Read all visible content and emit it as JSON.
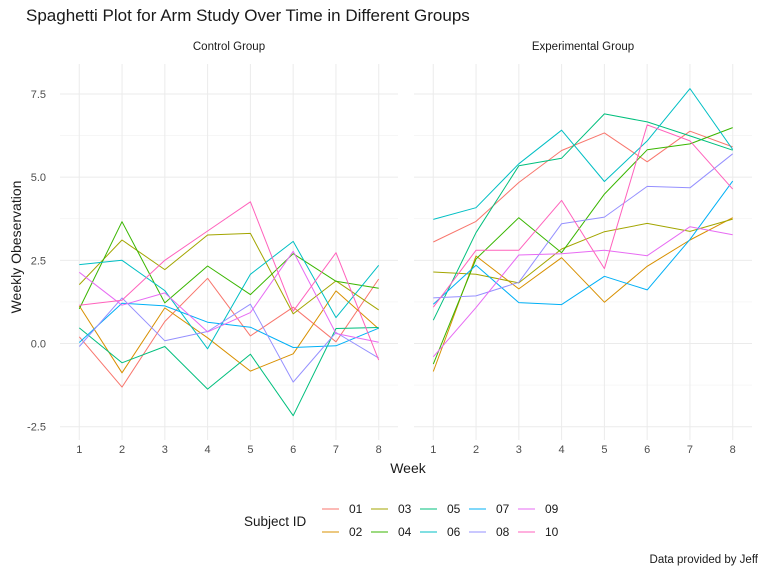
{
  "title": "Spaghetti Plot for Arm Study Over Time in Different Groups",
  "caption": "Data provided by Jeff",
  "chart_data": {
    "type": "line",
    "xlabel": "Week",
    "ylabel": "Weekly Obeservation",
    "x": [
      1,
      2,
      3,
      4,
      5,
      6,
      7,
      8
    ],
    "xlim": [
      0.55,
      8.45
    ],
    "ylim": [
      -2.9,
      8.4
    ],
    "yticks": [
      -2.5,
      0.0,
      2.5,
      5.0,
      7.5
    ],
    "ytick_labels": [
      "-2.5",
      "0.0",
      "2.5",
      "5.0",
      "7.5"
    ],
    "xticks": [
      1,
      2,
      3,
      4,
      5,
      6,
      7,
      8
    ],
    "xtick_labels": [
      "1",
      "2",
      "3",
      "4",
      "5",
      "6",
      "7",
      "8"
    ],
    "grid": true,
    "legend": {
      "title": "Subject ID",
      "position": "bottom",
      "entries": [
        "01",
        "02",
        "03",
        "04",
        "05",
        "06",
        "07",
        "08",
        "09",
        "10"
      ],
      "colors": [
        "#F8766D",
        "#D89000",
        "#A3A500",
        "#39B600",
        "#00BF7D",
        "#00BFC4",
        "#00B0F6",
        "#9590FF",
        "#E76BF3",
        "#FF62BC"
      ]
    },
    "panels": [
      {
        "label": "Control Group",
        "series": [
          {
            "name": "01",
            "values": [
              0.2,
              -1.31,
              0.66,
              1.96,
              0.23,
              1.09,
              0.05,
              1.94
            ]
          },
          {
            "name": "02",
            "values": [
              1.13,
              -0.88,
              1.07,
              0.17,
              -0.83,
              -0.31,
              1.58,
              0.44
            ]
          },
          {
            "name": "03",
            "values": [
              1.77,
              3.11,
              2.22,
              3.26,
              3.31,
              0.89,
              1.88,
              1.01
            ]
          },
          {
            "name": "04",
            "values": [
              1.04,
              3.66,
              1.22,
              2.33,
              1.47,
              2.7,
              1.87,
              1.66
            ]
          },
          {
            "name": "05",
            "values": [
              0.47,
              -0.58,
              -0.09,
              -1.37,
              -0.32,
              -2.17,
              0.45,
              0.48
            ]
          },
          {
            "name": "06",
            "values": [
              2.37,
              2.5,
              1.59,
              -0.16,
              2.08,
              3.07,
              0.78,
              2.35
            ]
          },
          {
            "name": "07",
            "values": [
              0.03,
              1.21,
              1.13,
              0.64,
              0.49,
              -0.12,
              -0.07,
              0.46
            ]
          },
          {
            "name": "08",
            "values": [
              -0.09,
              1.37,
              0.08,
              0.36,
              1.18,
              -1.16,
              0.33,
              -0.44
            ]
          },
          {
            "name": "09",
            "values": [
              2.14,
              1.15,
              1.52,
              0.35,
              0.93,
              2.77,
              0.3,
              0.04
            ]
          },
          {
            "name": "10",
            "values": [
              1.15,
              1.3,
              2.5,
              3.38,
              4.26,
              0.97,
              2.73,
              -0.5
            ]
          }
        ]
      },
      {
        "label": "Experimental Group",
        "series": [
          {
            "name": "01",
            "values": [
              3.05,
              3.67,
              4.84,
              5.8,
              6.33,
              5.46,
              6.38,
              5.91
            ]
          },
          {
            "name": "02",
            "values": [
              -0.84,
              2.63,
              1.64,
              2.58,
              1.24,
              2.32,
              3.11,
              3.78
            ]
          },
          {
            "name": "03",
            "values": [
              2.15,
              2.08,
              1.82,
              2.84,
              3.36,
              3.61,
              3.37,
              3.74
            ]
          },
          {
            "name": "04",
            "values": [
              -0.62,
              2.54,
              3.78,
              2.73,
              4.49,
              5.82,
              6.0,
              6.49
            ]
          },
          {
            "name": "05",
            "values": [
              0.7,
              3.33,
              5.34,
              5.57,
              6.9,
              6.66,
              6.24,
              5.81
            ]
          },
          {
            "name": "06",
            "values": [
              3.73,
              4.08,
              5.4,
              6.41,
              4.87,
              6.09,
              7.66,
              5.83
            ]
          },
          {
            "name": "07",
            "values": [
              1.18,
              2.35,
              1.23,
              1.17,
              2.02,
              1.61,
              3.13,
              4.88
            ]
          },
          {
            "name": "08",
            "values": [
              1.37,
              1.43,
              1.84,
              3.6,
              3.8,
              4.72,
              4.68,
              5.7
            ]
          },
          {
            "name": "09",
            "values": [
              -0.4,
              1.08,
              2.66,
              2.7,
              2.8,
              2.64,
              3.51,
              3.27
            ]
          },
          {
            "name": "10",
            "values": [
              1.09,
              2.8,
              2.8,
              4.3,
              2.25,
              6.57,
              6.09,
              4.64
            ]
          }
        ]
      }
    ]
  }
}
